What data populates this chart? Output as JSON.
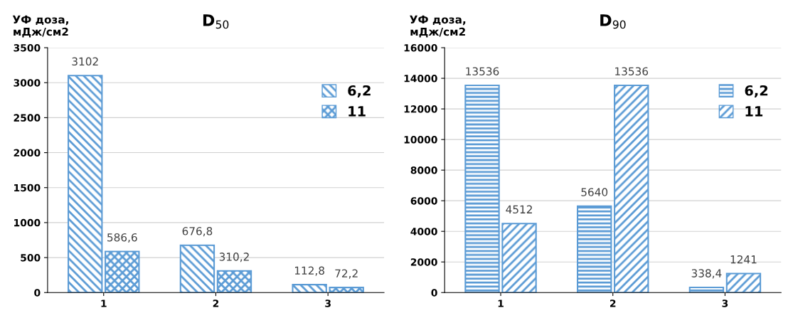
{
  "chart_data": [
    {
      "type": "bar",
      "title": "D$_{50}$",
      "ylabel": "УФ доза,\nмДж/см2",
      "categories": [
        "1",
        "2",
        "3"
      ],
      "series": [
        {
          "name": "6,2",
          "color": "#5b9bd5",
          "values": [
            3102,
            676.8,
            112.8
          ],
          "value_labels": [
            "3102",
            "676,8",
            "112,8"
          ]
        },
        {
          "name": "11",
          "color": "#5b9bd5",
          "values": [
            586.6,
            310.2,
            72.2
          ],
          "value_labels": [
            "586,6",
            "310,2",
            "72,2"
          ]
        }
      ],
      "ylim": [
        0,
        3500
      ],
      "yticks": [
        0,
        500,
        1000,
        1500,
        2000,
        2500,
        3000,
        3500
      ],
      "grid": "y",
      "legend": "top right"
    },
    {
      "type": "bar",
      "title": "D$_{90}$",
      "ylabel": "УФ доза,\nмДж/см2",
      "categories": [
        "1",
        "2",
        "3"
      ],
      "series": [
        {
          "name": "6,2",
          "color": "#5b9bd5",
          "values": [
            13536,
            5640,
            338.4
          ],
          "value_labels": [
            "13536",
            "5640",
            "338,4"
          ]
        },
        {
          "name": "11",
          "color": "#5b9bd5",
          "values": [
            4512,
            13536,
            1241
          ],
          "value_labels": [
            "4512",
            "13536",
            "1241"
          ]
        }
      ],
      "ylim": [
        0,
        16000
      ],
      "yticks": [
        0,
        2000,
        4000,
        6000,
        8000,
        10000,
        12000,
        14000,
        16000
      ],
      "grid": "y",
      "legend": "top right"
    }
  ]
}
